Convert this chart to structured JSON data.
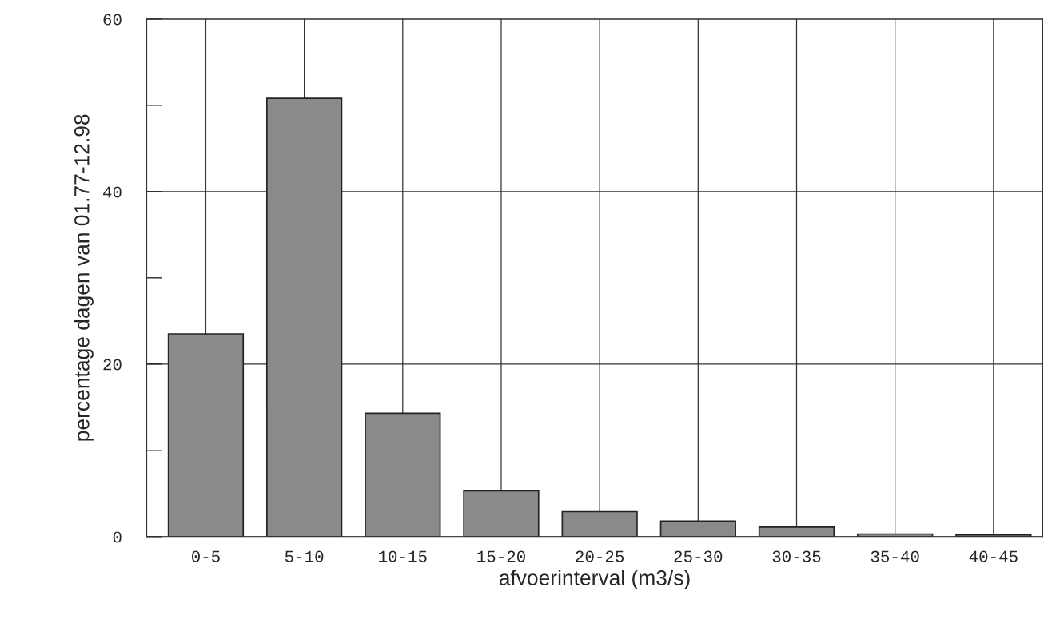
{
  "chart_data": {
    "type": "bar",
    "xlabel": "afvoerinterval (m3/s)",
    "ylabel": "percentage dagen van 01.77-12.98",
    "categories": [
      "0-5",
      "5-10",
      "10-15",
      "15-20",
      "20-25",
      "25-30",
      "30-35",
      "35-40",
      "40-45"
    ],
    "series": [
      {
        "color": "#8a8a8a",
        "values": [
          23.5,
          50.8,
          14.3,
          5.3,
          2.9,
          1.8,
          1.1,
          0.3,
          0.2
        ]
      }
    ],
    "ylim": [
      0,
      60
    ],
    "yticks": [
      0,
      20,
      40,
      60
    ],
    "grid": true
  }
}
